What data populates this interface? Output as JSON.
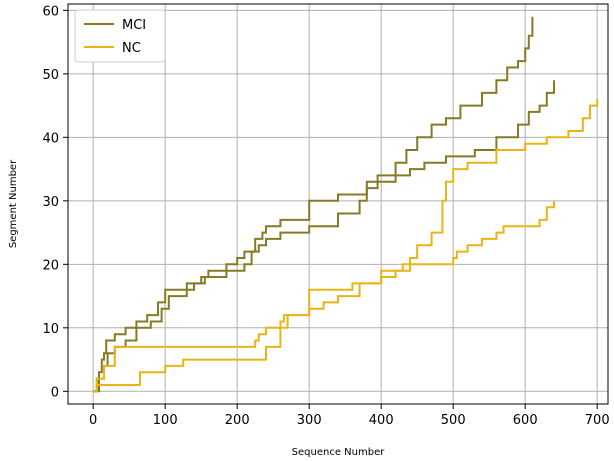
{
  "chart_data": {
    "type": "line",
    "xlabel": "Sequence Number",
    "ylabel": "Segment Number",
    "xlim": [
      -35,
      715
    ],
    "ylim": [
      -2,
      61
    ],
    "xticks": [
      0,
      100,
      200,
      300,
      400,
      500,
      600,
      700
    ],
    "yticks": [
      0,
      10,
      20,
      30,
      40,
      50,
      60
    ],
    "grid": true,
    "legend_position": "top-left",
    "legend": [
      {
        "label": "MCI",
        "color": "#857b25"
      },
      {
        "label": "NC",
        "color": "#e8b416"
      }
    ],
    "series": [
      {
        "name": "MCI",
        "color": "#857b25",
        "x": [
          0,
          5,
          8,
          12,
          15,
          18,
          22,
          30,
          45,
          60,
          75,
          90,
          100,
          125,
          140,
          150,
          160,
          185,
          200,
          210,
          225,
          235,
          240,
          260,
          300,
          340,
          380,
          395,
          420,
          435,
          450,
          470,
          490,
          510,
          540,
          560,
          575,
          590,
          600,
          605,
          610
        ],
        "y": [
          0,
          2,
          3,
          5,
          6,
          8,
          8,
          9,
          10,
          11,
          12,
          14,
          16,
          16,
          17,
          18,
          19,
          20,
          21,
          22,
          24,
          25,
          26,
          27,
          30,
          31,
          33,
          34,
          36,
          38,
          40,
          42,
          43,
          45,
          47,
          49,
          51,
          52,
          54,
          56,
          59
        ]
      },
      {
        "name": "MCI",
        "color": "#857b25",
        "x": [
          0,
          8,
          15,
          20,
          30,
          45,
          60,
          80,
          95,
          105,
          130,
          155,
          185,
          210,
          220,
          230,
          240,
          260,
          300,
          340,
          370,
          380,
          395,
          420,
          440,
          460,
          490,
          530,
          560,
          590,
          605,
          620,
          630,
          640
        ],
        "y": [
          0,
          2,
          4,
          6,
          7,
          8,
          10,
          11,
          13,
          15,
          17,
          18,
          19,
          20,
          22,
          23,
          24,
          25,
          26,
          28,
          30,
          32,
          33,
          34,
          35,
          36,
          37,
          38,
          40,
          42,
          44,
          45,
          47,
          49
        ]
      },
      {
        "name": "NC",
        "color": "#e8b416",
        "x": [
          0,
          5,
          15,
          30,
          220,
          225,
          230,
          240,
          270,
          300,
          360,
          400,
          430,
          440,
          450,
          470,
          485,
          490,
          500,
          520,
          560,
          600,
          630,
          660,
          680,
          690,
          700
        ],
        "y": [
          0,
          2,
          4,
          7,
          7,
          8,
          9,
          10,
          12,
          16,
          17,
          19,
          20,
          21,
          23,
          25,
          30,
          33,
          35,
          36,
          38,
          39,
          40,
          41,
          43,
          45,
          46
        ]
      },
      {
        "name": "NC",
        "color": "#e8b416",
        "x": [
          0,
          5,
          15,
          55,
          65,
          100,
          125,
          230,
          240,
          260,
          265,
          300,
          320,
          340,
          370,
          400,
          420,
          440,
          480,
          495,
          500,
          505,
          520,
          540,
          560,
          570,
          600,
          620,
          630,
          640
        ],
        "y": [
          0,
          1,
          1,
          1,
          3,
          4,
          5,
          5,
          7,
          11,
          12,
          13,
          14,
          15,
          17,
          18,
          19,
          20,
          20,
          20,
          21,
          22,
          23,
          24,
          25,
          26,
          26,
          27,
          29,
          30
        ]
      }
    ]
  }
}
